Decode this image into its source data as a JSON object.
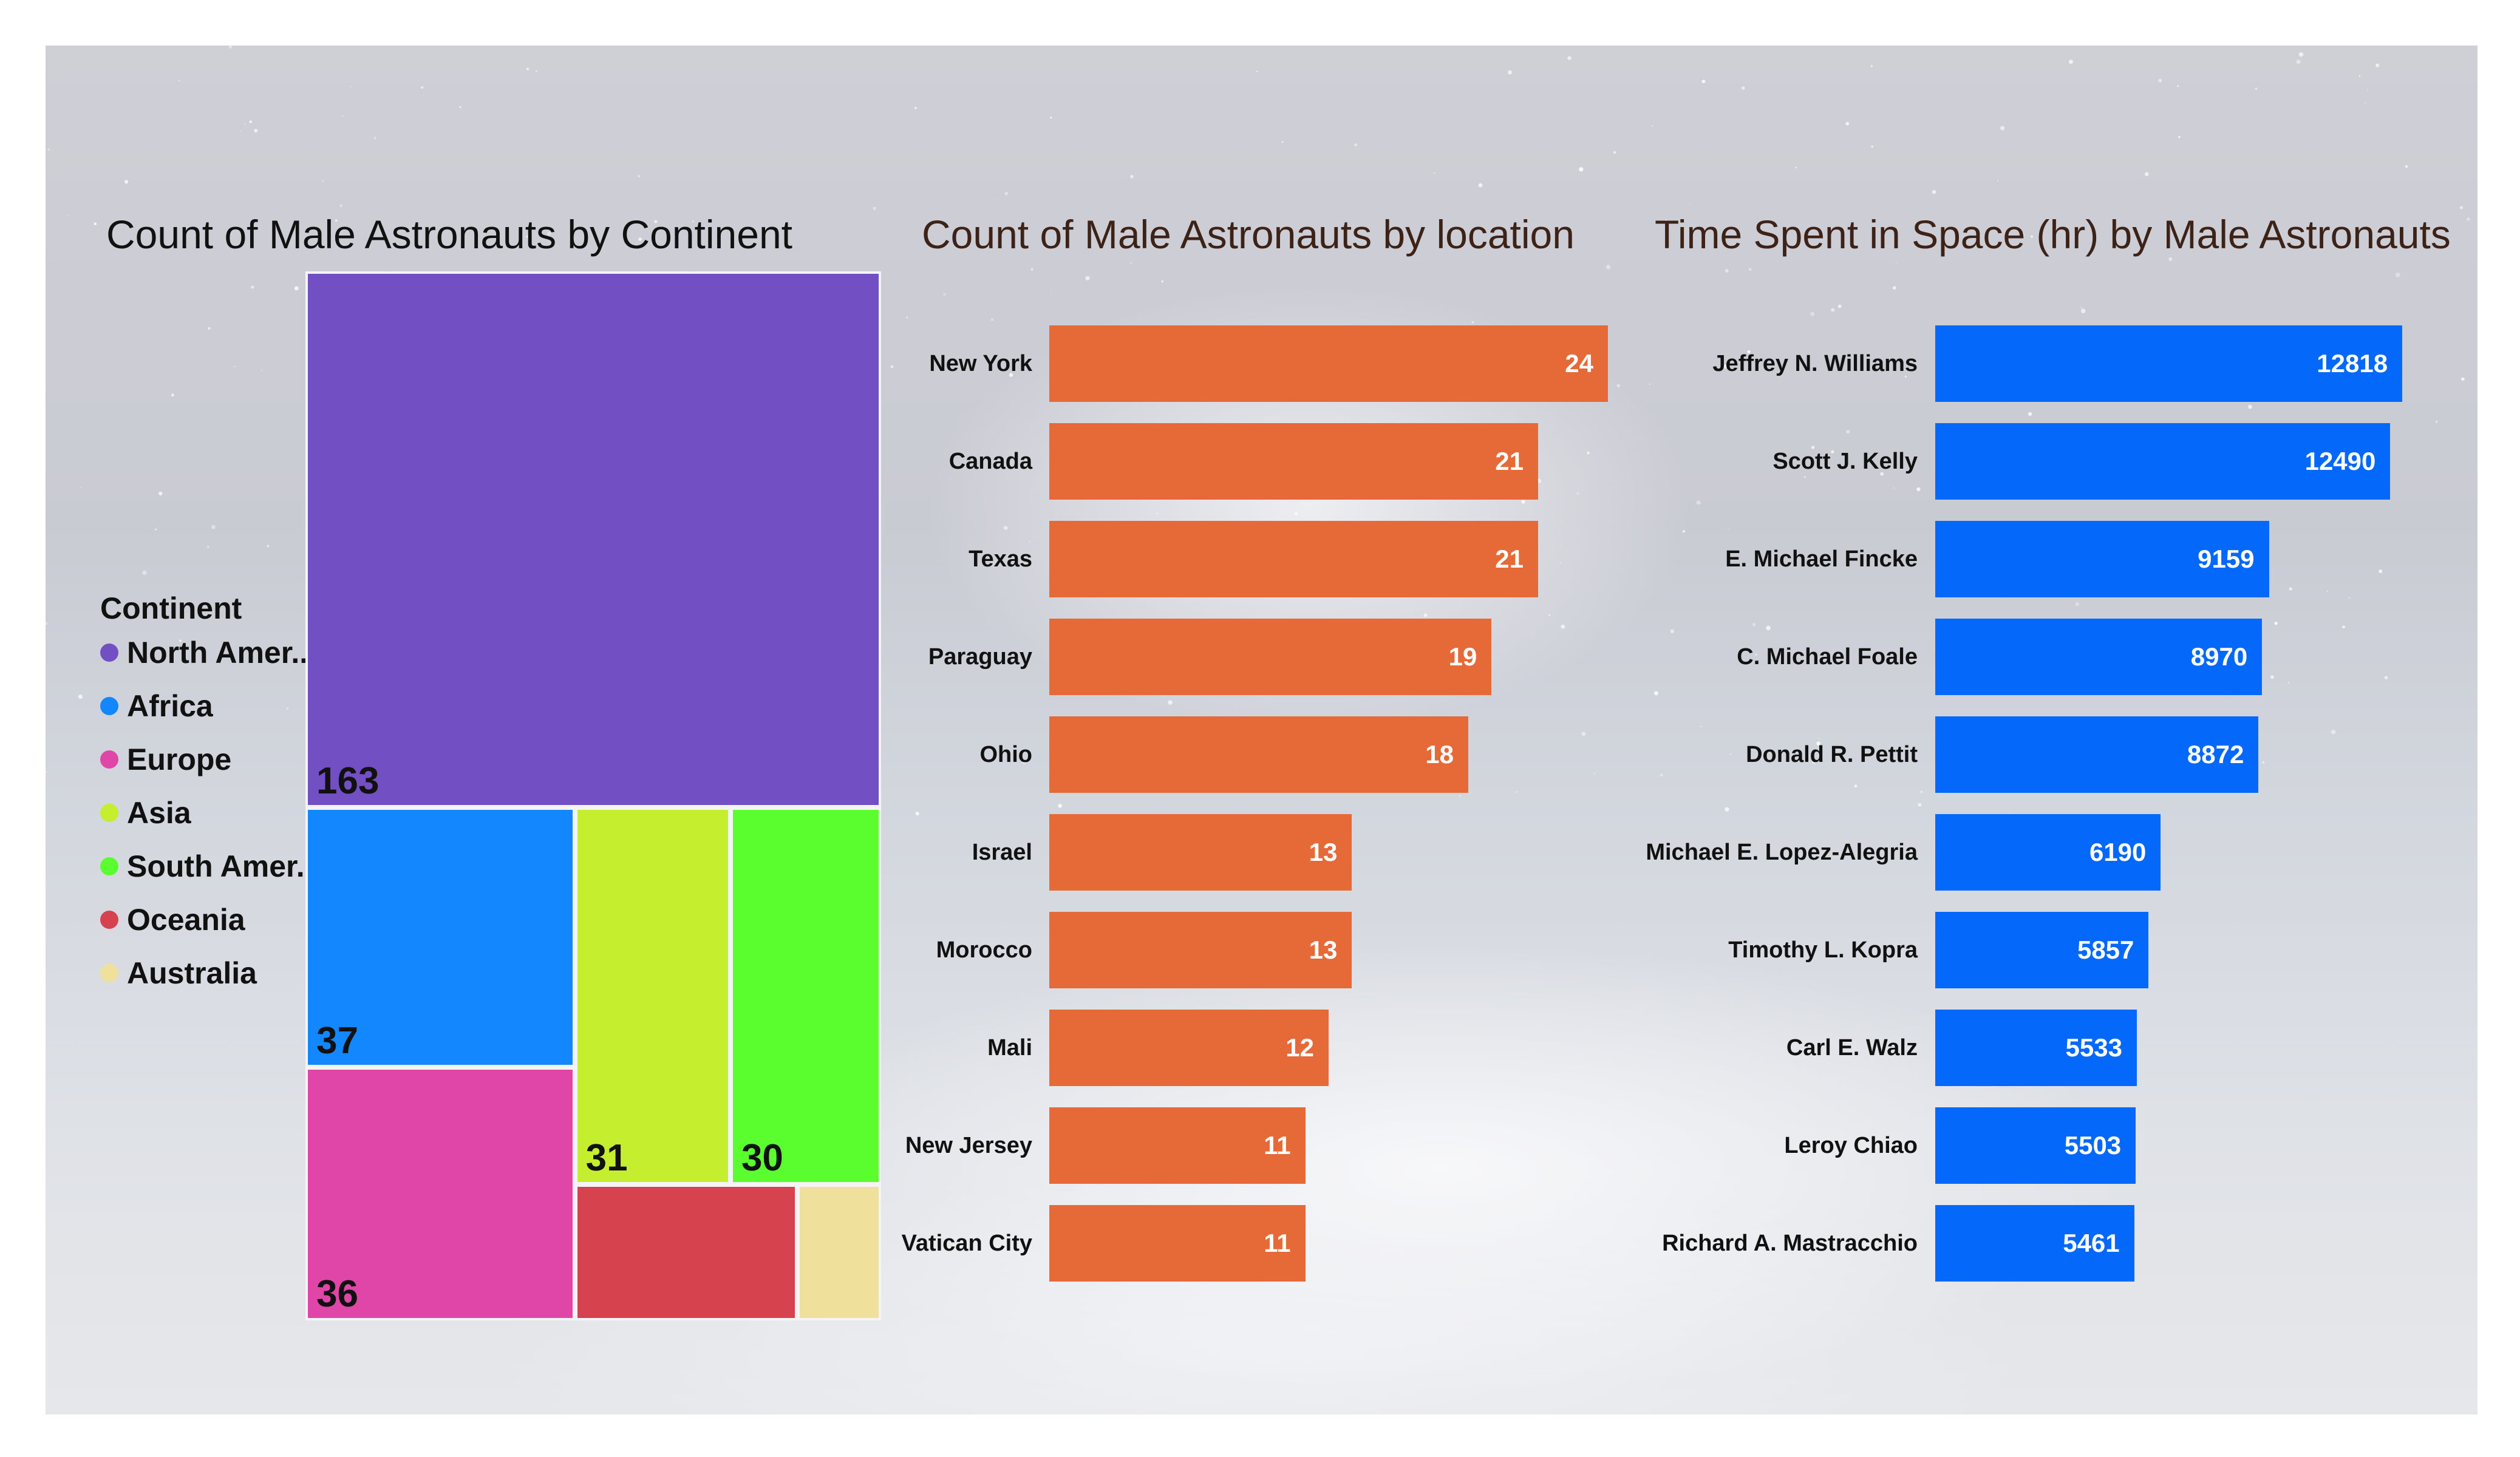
{
  "chart_data": [
    {
      "type": "treemap",
      "title": "Count of Male Astronauts by Continent",
      "legend": {
        "title": "Continent",
        "placement": "left",
        "items": [
          {
            "label": "North Amer...",
            "color": "#734fc4"
          },
          {
            "label": "Africa",
            "color": "#1387fe"
          },
          {
            "label": "Europe",
            "color": "#e046a8"
          },
          {
            "label": "Asia",
            "color": "#c5ee2e"
          },
          {
            "label": "South Amer...",
            "color": "#5afe2e"
          },
          {
            "label": "Oceania",
            "color": "#d6434e"
          },
          {
            "label": "Australia",
            "color": "#efe19b"
          }
        ]
      },
      "tiles": [
        {
          "name": "North America",
          "value": 163,
          "value_label": "163",
          "color": "#734fc4"
        },
        {
          "name": "Africa",
          "value": 37,
          "value_label": "37",
          "color": "#1387fe"
        },
        {
          "name": "Europe",
          "value": 36,
          "value_label": "36",
          "color": "#e046a8"
        },
        {
          "name": "Asia",
          "value": 31,
          "value_label": "31",
          "color": "#c5ee2e"
        },
        {
          "name": "South America",
          "value": 30,
          "value_label": "30",
          "color": "#5afe2e"
        },
        {
          "name": "Oceania",
          "value": 16,
          "value_label": "",
          "color": "#d6434e"
        },
        {
          "name": "Australia",
          "value": 6,
          "value_label": "",
          "color": "#efe19b"
        }
      ]
    },
    {
      "type": "bar",
      "orientation": "horizontal",
      "title": "Count of Male Astronauts by location",
      "title_color": "#3d2218",
      "color": "#e66a37",
      "xlim": [
        0,
        24
      ],
      "categories": [
        "New York",
        "Canada",
        "Texas",
        "Paraguay",
        "Ohio",
        "Israel",
        "Morocco",
        "Mali",
        "New Jersey",
        "Vatican City"
      ],
      "values": [
        24,
        21,
        21,
        19,
        18,
        13,
        13,
        12,
        11,
        11
      ]
    },
    {
      "type": "bar",
      "orientation": "horizontal",
      "title": "Time Spent in Space (hr) by Male Astronauts",
      "title_color": "#3d2218",
      "color": "#0468fb",
      "xlim": [
        0,
        13500
      ],
      "categories": [
        "Jeffrey N. Williams",
        "Scott J. Kelly",
        "E. Michael Fincke",
        "C. Michael Foale",
        "Donald R. Pettit",
        "Michael E. Lopez-Alegria",
        "Timothy L. Kopra",
        "Carl E. Walz",
        "Leroy Chiao",
        "Richard A. Mastracchio"
      ],
      "values": [
        12818,
        12490,
        9159,
        8970,
        8872,
        6190,
        5857,
        5533,
        5503,
        5461
      ]
    }
  ]
}
